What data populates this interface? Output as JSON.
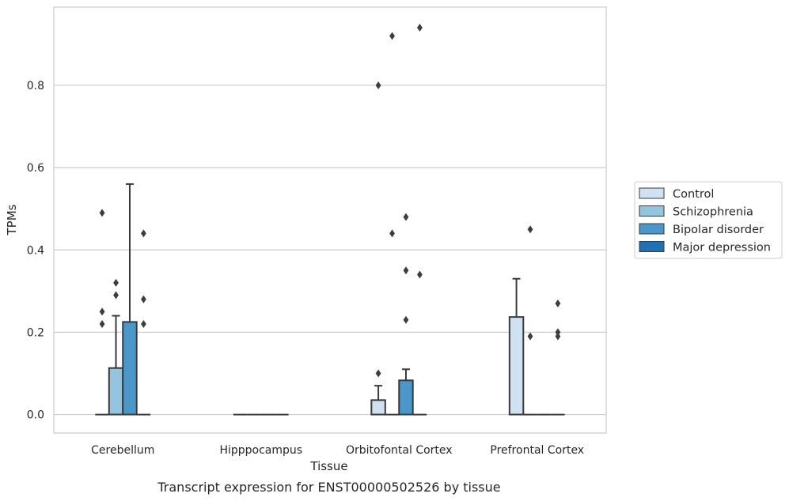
{
  "chart_data": {
    "type": "bar",
    "caption": "Transcript expression for ENST00000502526 by tissue",
    "xlabel": "Tissue",
    "ylabel": "TPMs",
    "ylim": [
      -0.045,
      0.99
    ],
    "yticks": [
      0.0,
      0.2,
      0.4,
      0.6,
      0.8
    ],
    "ytick_labels": [
      "0.0",
      "0.2",
      "0.4",
      "0.6",
      "0.8"
    ],
    "grid": "horizontal",
    "legend_position": "right",
    "categories": [
      "Cerebellum",
      "Hipppocampus",
      "Orbitofontal Cortex",
      "Prefrontal Cortex"
    ],
    "series": [
      {
        "name": "Control",
        "color": "#d0e1f2",
        "values": [
          0.0,
          0.0,
          0.035,
          0.237
        ],
        "error_upper": [
          null,
          null,
          0.07,
          0.33
        ],
        "outliers": [
          [
            0.22,
            0.25,
            0.49
          ],
          [],
          [
            0.1,
            0.8
          ],
          []
        ]
      },
      {
        "name": "Schizophrenia",
        "color": "#94c4df",
        "values": [
          0.113,
          0.0,
          0.0,
          0.0
        ],
        "error_upper": [
          0.24,
          null,
          null,
          null
        ],
        "outliers": [
          [
            0.29,
            0.32
          ],
          [],
          [
            0.44,
            0.92
          ],
          [
            0.19,
            0.45
          ]
        ]
      },
      {
        "name": "Bipolar disorder",
        "color": "#4a98c9",
        "values": [
          0.225,
          0.0,
          0.083,
          0.0
        ],
        "error_upper": [
          0.56,
          null,
          0.11,
          null
        ],
        "outliers": [
          [],
          [],
          [
            0.23,
            0.35,
            0.48
          ],
          []
        ]
      },
      {
        "name": "Major depression",
        "color": "#2070b4",
        "values": [
          0.0,
          0.0,
          0.0,
          0.0
        ],
        "error_upper": [
          null,
          null,
          null,
          null
        ],
        "outliers": [
          [
            0.22,
            0.28,
            0.44
          ],
          [],
          [
            0.34,
            0.94
          ],
          [
            0.19,
            0.2,
            0.27
          ]
        ]
      }
    ]
  }
}
